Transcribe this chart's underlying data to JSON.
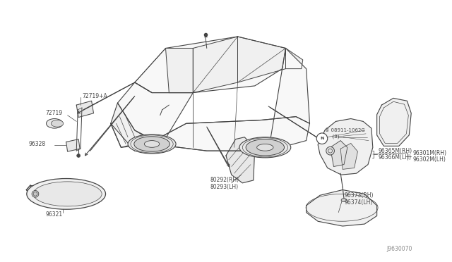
{
  "bg_color": "#ffffff",
  "line_color": "#444444",
  "text_color": "#444444",
  "fig_width": 6.4,
  "fig_height": 3.72,
  "dpi": 100,
  "labels": {
    "72719A": "72719+A",
    "72719": "72719",
    "96328": "96328",
    "96321": "96321",
    "80292": "80292(RH)",
    "80293": "80293(LH)",
    "bolt1": "① 08911-1062G",
    "bolt2": "  (3)",
    "96365": "96365M(RH)",
    "96366": "96366M(LH)",
    "96301": "96301M(RH)",
    "96302": "96302M(LH)",
    "96373": "96373(RH)",
    "96374": "96374(LH)",
    "partno": "J9630070"
  }
}
